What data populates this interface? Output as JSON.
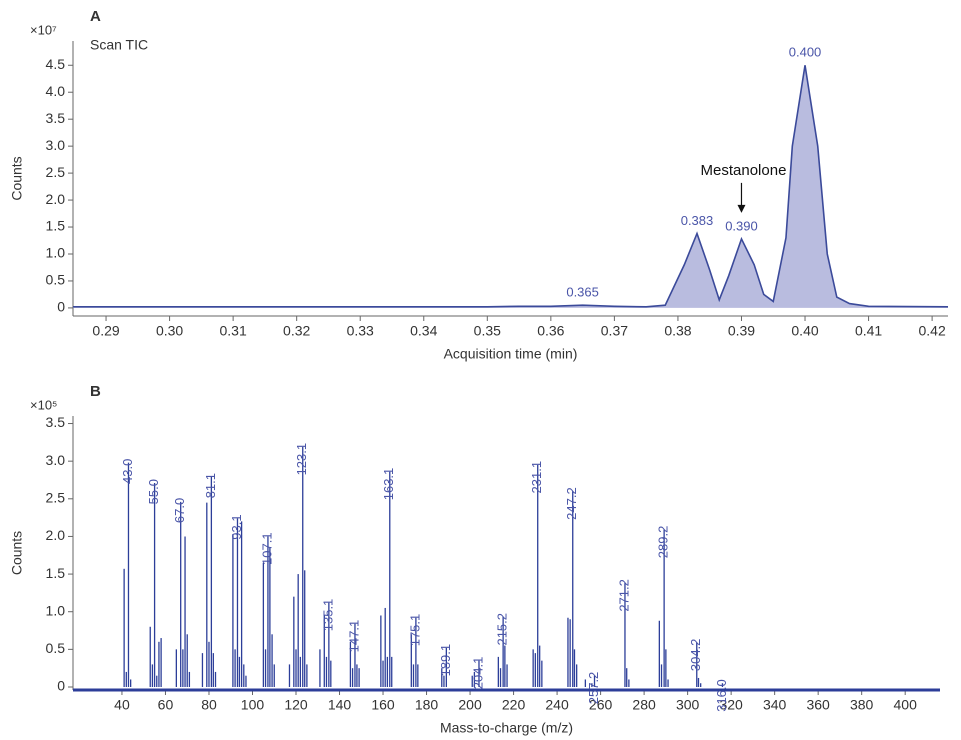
{
  "chart_data": [
    {
      "type": "area",
      "panel": "A",
      "title": "Scan TIC",
      "y_multiplier": "×10⁷",
      "ylabel": "Counts",
      "xlabel": "Acquisition time (min)",
      "line_color": "#3b4a9a",
      "fill_color": "#b9bcdf",
      "label_color": "#4a55a8",
      "x": [
        0.2848,
        0.35,
        0.355,
        0.36,
        0.365,
        0.37,
        0.375,
        0.378,
        0.381,
        0.383,
        0.385,
        0.3865,
        0.388,
        0.39,
        0.392,
        0.3935,
        0.395,
        0.397,
        0.398,
        0.4,
        0.402,
        0.4035,
        0.405,
        0.407,
        0.41,
        0.4225
      ],
      "values": [
        0.02,
        0.02,
        0.03,
        0.03,
        0.05,
        0.03,
        0.02,
        0.05,
        0.8,
        1.38,
        0.7,
        0.15,
        0.6,
        1.28,
        0.8,
        0.25,
        0.12,
        1.3,
        3.0,
        4.5,
        3.0,
        1.0,
        0.2,
        0.08,
        0.03,
        0.02
      ],
      "peak_labels": [
        {
          "value": 0.365,
          "label": "0.365"
        },
        {
          "value": 0.383,
          "label": "0.383"
        },
        {
          "value": 0.39,
          "label": "0.390"
        },
        {
          "value": 0.4,
          "label": "0.400"
        }
      ],
      "annotation": "Mestanolone",
      "xlim": [
        0.2848,
        0.4225
      ],
      "xticks": [
        {
          "value": 0.29,
          "label": "0.29"
        },
        {
          "value": 0.3,
          "label": "0.30"
        },
        0.31,
        0.32,
        0.33,
        0.34,
        0.35,
        0.36,
        0.37,
        0.38,
        0.39,
        {
          "value": 0.4,
          "label": "0.40"
        },
        0.41,
        0.42
      ],
      "ylim": [
        -0.15,
        4.95
      ],
      "yticks": [
        0,
        0.5,
        {
          "value": 1,
          "label": "1.0"
        },
        1.5,
        {
          "value": 2,
          "label": "2.0"
        },
        2.5,
        {
          "value": 3,
          "label": "3.0"
        },
        3.5,
        {
          "value": 4,
          "label": "4.0"
        },
        4.5
      ]
    },
    {
      "type": "stick",
      "panel": "B",
      "y_multiplier": "×10⁵",
      "ylabel": "Counts",
      "xlabel": "Mass-to-charge (m/z)",
      "line_color": "#2c3e99",
      "label_color": "#4a55a8",
      "x": [
        41,
        42,
        43,
        44,
        53,
        54,
        55,
        56,
        57,
        58,
        65,
        67,
        68,
        69,
        70,
        71,
        77,
        79,
        80,
        81.1,
        82,
        83,
        91,
        92,
        93.1,
        94,
        95,
        96,
        97,
        105,
        106,
        107.1,
        108,
        109,
        110,
        117,
        119,
        120,
        121,
        122,
        123.1,
        124,
        125,
        131,
        133,
        134,
        135.1,
        136,
        145,
        146,
        147.1,
        148,
        149,
        159,
        160,
        161,
        162,
        163.1,
        164,
        173,
        174,
        175.1,
        176,
        187,
        188,
        189.1,
        201,
        202,
        204.1,
        213,
        214,
        215.2,
        216,
        217,
        229,
        230,
        231.1,
        232,
        233,
        245,
        246,
        247.2,
        248,
        249,
        253,
        256,
        257.2,
        271.2,
        272,
        273,
        287,
        288,
        289.2,
        290,
        291,
        304.2,
        305,
        306,
        316
      ],
      "values": [
        1.57,
        0.2,
        2.98,
        0.1,
        0.8,
        0.3,
        2.71,
        0.15,
        0.6,
        0.65,
        0.5,
        2.46,
        0.5,
        2.0,
        0.7,
        0.2,
        0.45,
        2.45,
        0.6,
        2.79,
        0.45,
        0.2,
        2.03,
        0.5,
        2.24,
        0.4,
        2.2,
        0.3,
        0.15,
        1.65,
        0.5,
        2.0,
        1.85,
        0.7,
        0.3,
        0.3,
        1.2,
        0.5,
        1.5,
        0.4,
        3.19,
        1.55,
        0.3,
        0.5,
        0.95,
        0.4,
        1.12,
        0.35,
        0.6,
        0.25,
        0.84,
        0.3,
        0.25,
        0.95,
        0.35,
        1.05,
        0.4,
        2.86,
        0.4,
        0.7,
        0.3,
        0.92,
        0.3,
        0.25,
        0.15,
        0.52,
        0.15,
        0.2,
        0.35,
        0.4,
        0.25,
        0.93,
        0.55,
        0.3,
        0.5,
        0.45,
        2.95,
        0.55,
        0.35,
        0.92,
        0.9,
        2.6,
        0.5,
        0.3,
        0.1,
        0.05,
        0.15,
        1.38,
        0.25,
        0.1,
        0.88,
        0.3,
        2.09,
        0.5,
        0.1,
        0.59,
        0.12,
        0.05,
        0.05
      ],
      "peak_labels": [
        {
          "value": 43,
          "label": "43.0"
        },
        {
          "value": 55,
          "label": "55.0"
        },
        {
          "value": 67,
          "label": "67.0"
        },
        81.1,
        93.1,
        107.1,
        123.1,
        135.1,
        147.1,
        163.1,
        175.1,
        189.1,
        204.1,
        215.2,
        231.1,
        247.2,
        257.2,
        271.2,
        289.2,
        304.2,
        {
          "value": 316,
          "label": "316.0"
        }
      ],
      "xlim": [
        17.5,
        416
      ],
      "xticks": [
        40,
        60,
        80,
        100,
        120,
        140,
        160,
        180,
        200,
        220,
        240,
        260,
        280,
        300,
        320,
        340,
        360,
        380,
        400
      ],
      "ylim": [
        -0.04,
        3.6
      ],
      "yticks": [
        0,
        0.5,
        {
          "value": 1,
          "label": "1.0"
        },
        1.5,
        {
          "value": 2,
          "label": "2.0"
        },
        2.5,
        {
          "value": 3,
          "label": "3.0"
        },
        3.5
      ]
    }
  ]
}
